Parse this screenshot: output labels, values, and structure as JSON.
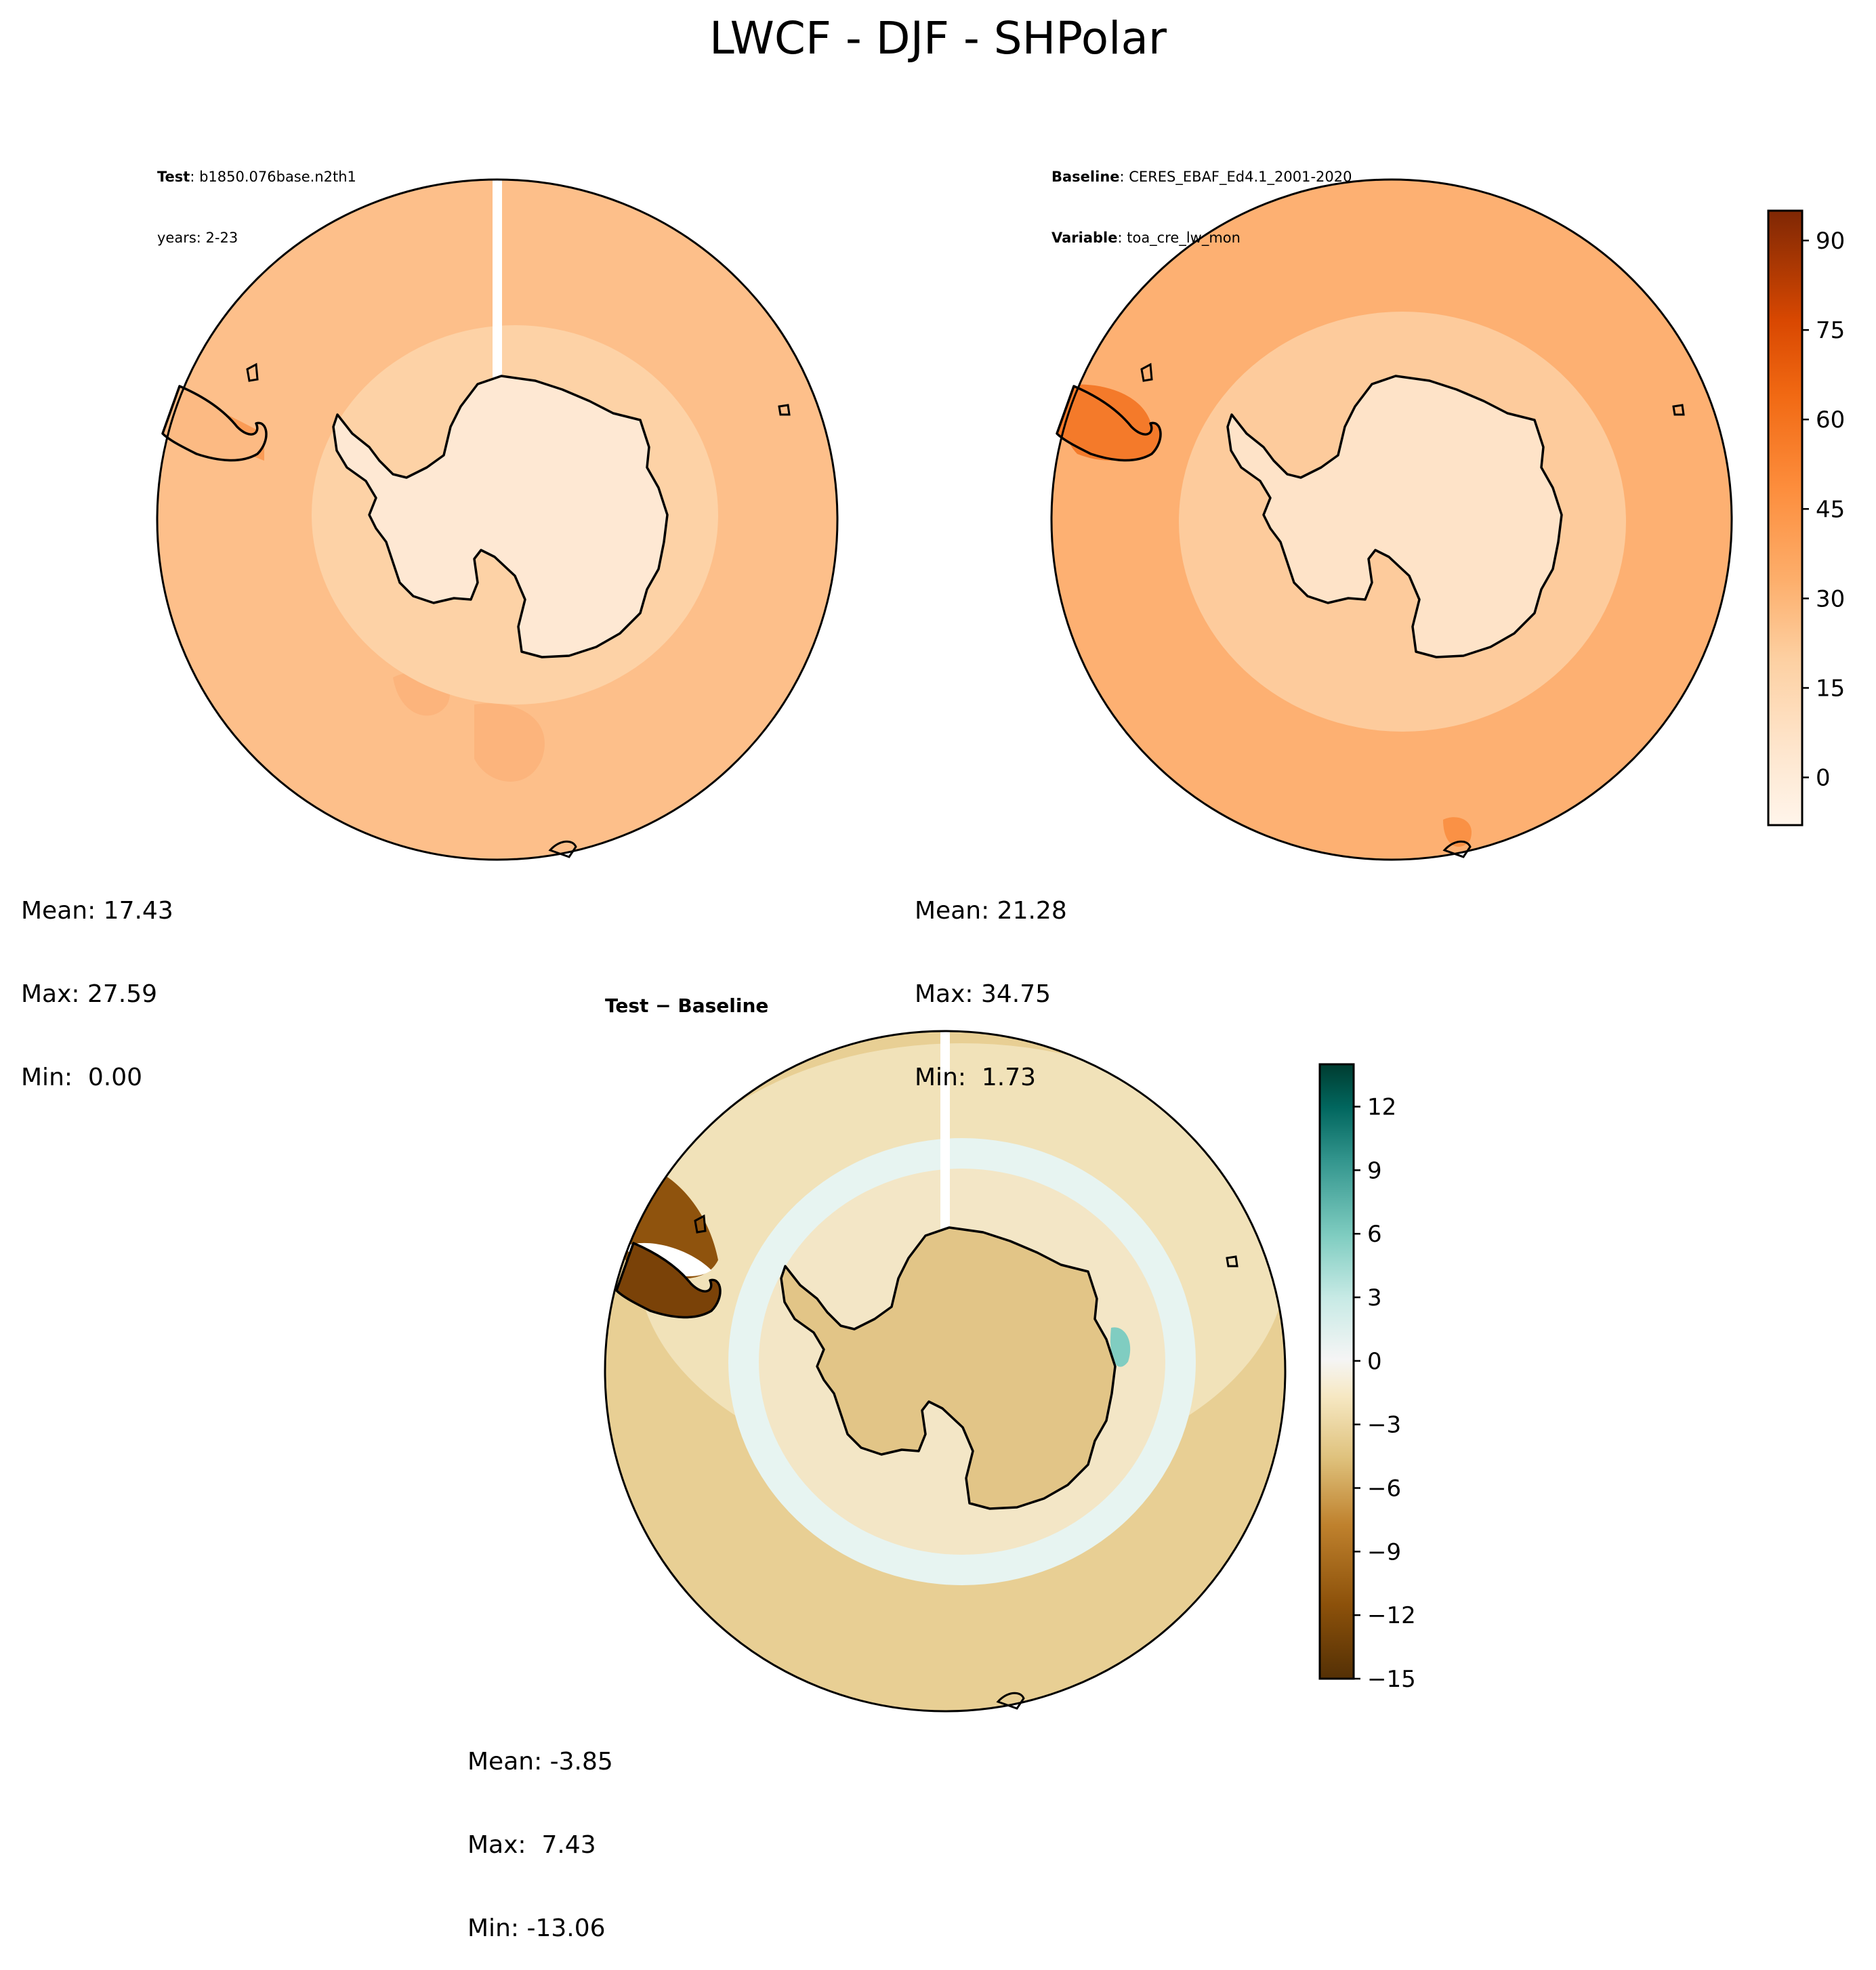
{
  "title": "LWCF - DJF - SHPolar",
  "panels": [
    {
      "id": "test",
      "header": [
        {
          "label": "Test",
          "value": ": b1850.076base.n2th1"
        },
        {
          "label": "",
          "value": "years: 2-23"
        }
      ],
      "stats": {
        "mean": "Mean: 17.43",
        "max": "Max: 27.59",
        "min": "Min:  0.00"
      }
    },
    {
      "id": "baseline",
      "header": [
        {
          "label": "Baseline",
          "value": ": CERES_EBAF_Ed4.1_2001-2020"
        },
        {
          "label": "Variable",
          "value": ": toa_cre_lw_mon"
        }
      ],
      "stats": {
        "mean": "Mean: 21.28",
        "max": "Max: 34.75",
        "min": "Min:  1.73"
      }
    },
    {
      "id": "difference",
      "title": "Test − Baseline",
      "stats": {
        "mean": "Mean: -3.85",
        "max": "Max:  7.43",
        "min": "Min: -13.06"
      }
    }
  ],
  "colorbars": {
    "main": {
      "range": [
        -8,
        95
      ],
      "ticks": [
        90,
        75,
        60,
        45,
        30,
        15,
        0
      ],
      "tick_labels": [
        "90",
        "75",
        "60",
        "45",
        "30",
        "15",
        "0"
      ],
      "colormap": "Oranges",
      "colors": [
        "#fff5eb",
        "#fee6ce",
        "#fdd0a2",
        "#fdae6b",
        "#fd8d3c",
        "#f16913",
        "#d94801",
        "#a63603",
        "#7f2704"
      ]
    },
    "diff": {
      "range": [
        -15,
        14
      ],
      "ticks": [
        12,
        9,
        6,
        3,
        0,
        -3,
        -6,
        -9,
        -12,
        -15
      ],
      "tick_labels": [
        "12",
        "9",
        "6",
        "3",
        "0",
        "−3",
        "−6",
        "−9",
        "−12",
        "−15"
      ],
      "colormap": "BrBG",
      "colors": [
        "#543005",
        "#8c510a",
        "#bf812d",
        "#dfc27d",
        "#f6e8c3",
        "#f5f5f5",
        "#c7eae5",
        "#80cdc1",
        "#35978f",
        "#01665e",
        "#003c30"
      ]
    }
  },
  "map_colors": {
    "test": {
      "ocean": "#fdbf8a",
      "ring": "#fdd2a6",
      "land": "#fee8d3"
    },
    "baseline": {
      "ocean": "#fdb072",
      "ring": "#fdcb9c",
      "land": "#fee3c8"
    },
    "difference": {
      "ocean": "#e8cf94",
      "ring": "#e7f4f1",
      "land": "#e2c587"
    }
  }
}
